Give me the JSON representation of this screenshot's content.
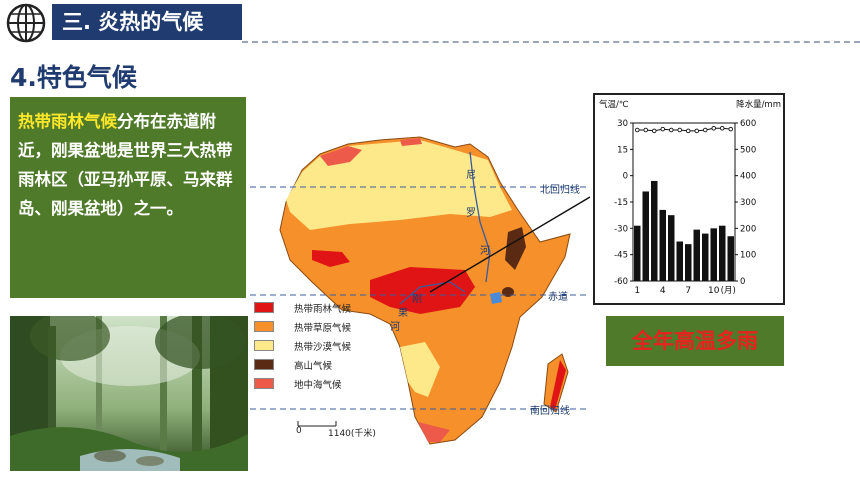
{
  "header": {
    "section_title": "三. 炎热的气候"
  },
  "subtitle": "4.特色气候",
  "intro": {
    "highlight": "热带雨林气候",
    "text": "分布在赤道附近，刚果盆地是世界三大热带雨林区（亚马孙平原、马来群岛、刚果盆地）之一。"
  },
  "map": {
    "labels": {
      "tropic_north": "北回归线",
      "equator": "赤道",
      "tropic_south": "南回归线",
      "nile_1": "尼",
      "nile_2": "罗",
      "nile_3": "河",
      "congo_1": "刚",
      "congo_2": "果",
      "congo_3": "河"
    },
    "legend": [
      {
        "label": "热带雨林气候",
        "color": "#e01414"
      },
      {
        "label": "热带草原气候",
        "color": "#f5902a"
      },
      {
        "label": "热带沙漠气候",
        "color": "#fde88a"
      },
      {
        "label": "高山气候",
        "color": "#5a2a12"
      },
      {
        "label": "地中海气候",
        "color": "#ee5a4a"
      }
    ],
    "scale": {
      "zero": "0",
      "value": "1140(千米)"
    }
  },
  "chart_data": {
    "type": "bar",
    "title": "",
    "ylabel_left": "气温/℃",
    "ylabel_right": "降水量/mm",
    "xlabel": "(月)",
    "x_ticks": [
      "1",
      "4",
      "7",
      "10"
    ],
    "temp_ticks": [
      "30",
      "15",
      "0",
      "-15",
      "-30",
      "-45",
      "-60"
    ],
    "precip_ticks": [
      "600",
      "500",
      "400",
      "300",
      "200",
      "100",
      "0"
    ],
    "temp_range": [
      -60,
      30
    ],
    "precip_range": [
      0,
      600
    ],
    "categories": [
      "1",
      "2",
      "3",
      "4",
      "5",
      "6",
      "7",
      "8",
      "9",
      "10",
      "11",
      "12"
    ],
    "series": [
      {
        "kind": "bar",
        "axis": "right",
        "values": [
          210,
          340,
          380,
          270,
          250,
          150,
          140,
          195,
          180,
          200,
          210,
          170
        ]
      },
      {
        "kind": "line",
        "axis": "left",
        "values": [
          26,
          26,
          25.5,
          26.5,
          26,
          26,
          25.5,
          25.5,
          26,
          27,
          27,
          26.5
        ]
      }
    ]
  },
  "conclusion": "全年高温多雨"
}
